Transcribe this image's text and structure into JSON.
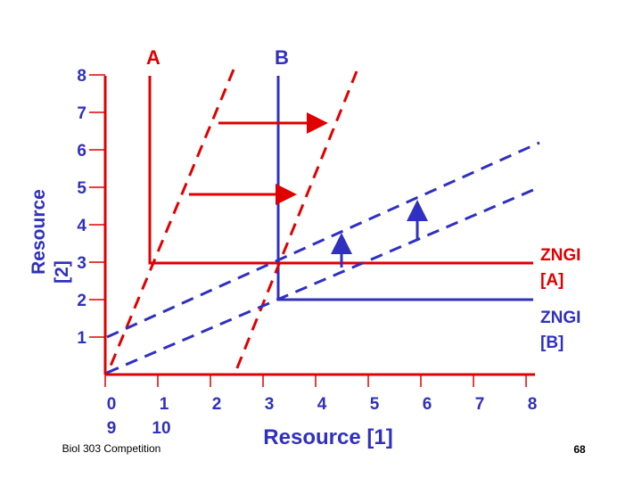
{
  "labels": {
    "a": "A",
    "b": "B",
    "zngi_a": [
      "ZNGI",
      "[A]"
    ],
    "zngi_b": [
      "ZNGI",
      "[B]"
    ]
  },
  "y_axis": {
    "title": [
      "Resource",
      "[2]"
    ],
    "ticks": [
      "1",
      "2",
      "3",
      "4",
      "5",
      "6",
      "7",
      "8"
    ]
  },
  "x_axis": {
    "title": "Resource [1]",
    "ticks": [
      "0",
      "1",
      "2",
      "3",
      "4",
      "5",
      "6",
      "7",
      "8"
    ],
    "second_row": [
      "9",
      "10"
    ]
  },
  "footer": {
    "course": "Biol 303 Competition",
    "page": "68"
  }
}
